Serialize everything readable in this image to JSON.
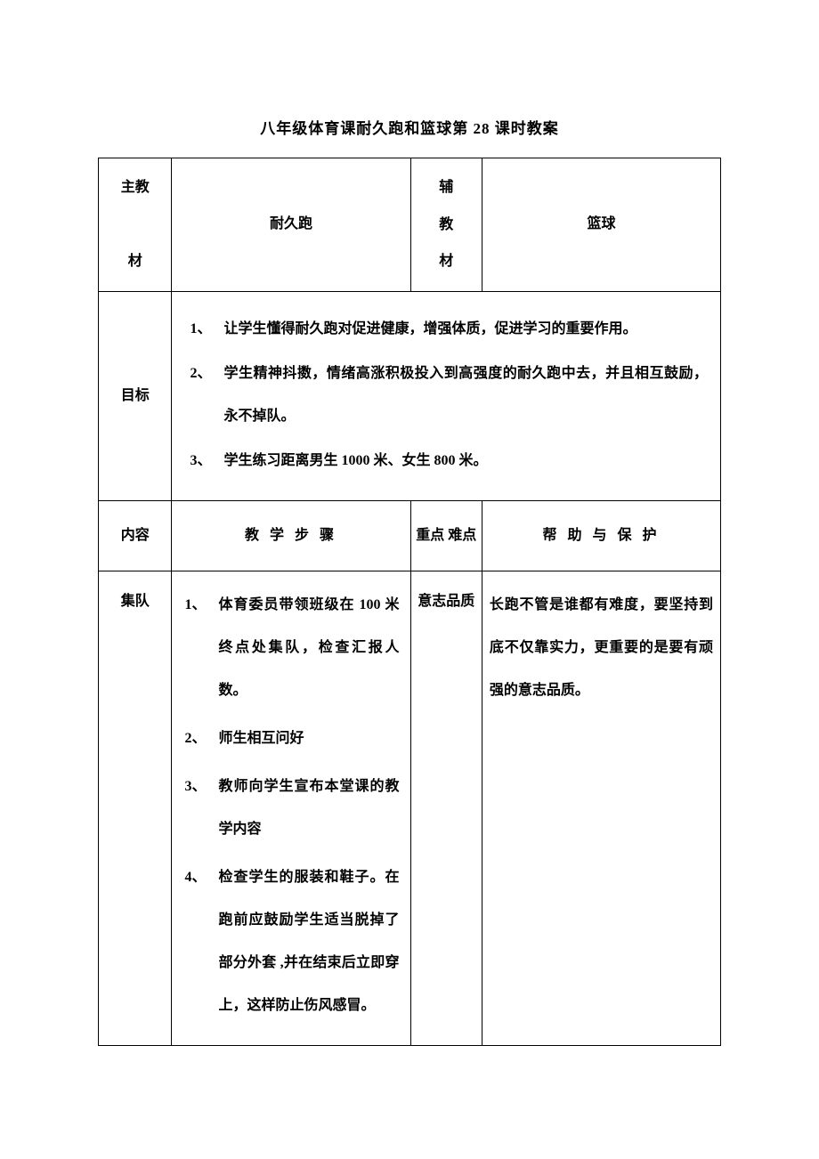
{
  "document": {
    "title": "八年级体育课耐久跑和篮球第 28 课时教案",
    "background_color": "#ffffff",
    "text_color": "#000000",
    "border_color": "#000000",
    "font_family": "SimSun",
    "title_fontsize": 17,
    "body_fontsize": 16,
    "font_weight": "bold"
  },
  "table": {
    "row1": {
      "label": "主教材",
      "main_content": "耐久跑",
      "sub_label": "辅教材",
      "sub_content": "篮球"
    },
    "row2": {
      "label": "目标",
      "items": [
        {
          "num": "1、",
          "text": "让学生懂得耐久跑对促进健康，增强体质，促进学习的重要作用。"
        },
        {
          "num": "2、",
          "text": "学生精神抖擞，情绪高涨积极投入到高强度的耐久跑中去，并且相互鼓励，永不掉队。"
        },
        {
          "num": "3、",
          "text": "学生练习距离男生 1000 米、女生 800 米。"
        }
      ]
    },
    "row3_headers": {
      "col1": "内容",
      "col2": "教 学 步 骤",
      "col3": "重点 难点",
      "col4": "帮 助 与 保 护"
    },
    "row4": {
      "col1": "集队",
      "steps": [
        {
          "num": "1、",
          "text": "体育委员带领班级在 100 米终点处集队，检查汇报人数。"
        },
        {
          "num": "2、",
          "text": "师生相互问好"
        },
        {
          "num": "3、",
          "text": "教师向学生宣布本堂课的教学内容"
        },
        {
          "num": "4、",
          "text": "检查学生的服装和鞋子。在跑前应鼓励学生适当脱掉了部分外套 ,并在结束后立即穿上，这样防止伤风感冒。"
        }
      ],
      "keypoint": "意志品质",
      "help": "长跑不管是谁都有难度，要坚持到底不仅靠实力，更重要的是要有顽强的意志品质。"
    }
  }
}
